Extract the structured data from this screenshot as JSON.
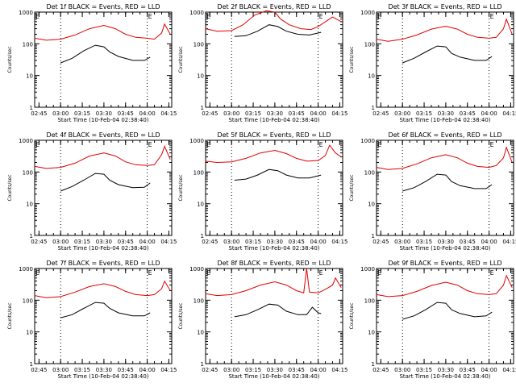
{
  "chart_data": {
    "type": "line",
    "y_scale": "log",
    "ylim": [
      1,
      1000
    ],
    "yticks": [
      "1",
      "10",
      "100",
      "1000"
    ],
    "xticks": [
      "02:45",
      "03:00",
      "03:15",
      "03:30",
      "03:45",
      "04:00",
      "04:15"
    ],
    "xtick_minutes": [
      165,
      180,
      195,
      210,
      225,
      240,
      255
    ],
    "xlim_minutes": [
      162,
      257
    ],
    "ylabel": "Counts/sec",
    "xlabel": "Start Time (10-Feb-04 02:38:40)",
    "marker_letter": "E",
    "vertical_markers_minutes": [
      180,
      240
    ],
    "panels": [
      {
        "title": "Det 1f BLACK = Events, RED = LLD",
        "lld": [
          [
            162,
            150
          ],
          [
            170,
            130
          ],
          [
            180,
            140
          ],
          [
            190,
            190
          ],
          [
            200,
            300
          ],
          [
            210,
            380
          ],
          [
            218,
            300
          ],
          [
            225,
            200
          ],
          [
            232,
            160
          ],
          [
            240,
            150
          ],
          [
            245,
            140
          ],
          [
            250,
            220
          ],
          [
            252,
            420
          ],
          [
            256,
            200
          ]
        ],
        "events": [
          [
            180,
            25
          ],
          [
            188,
            35
          ],
          [
            196,
            60
          ],
          [
            204,
            90
          ],
          [
            210,
            80
          ],
          [
            214,
            55
          ],
          [
            220,
            40
          ],
          [
            230,
            30
          ],
          [
            238,
            30
          ],
          [
            242,
            38
          ]
        ]
      },
      {
        "title": "Det 2f BLACK = Events, RED = LLD",
        "lld": [
          [
            162,
            300
          ],
          [
            170,
            250
          ],
          [
            180,
            260
          ],
          [
            188,
            400
          ],
          [
            196,
            800
          ],
          [
            204,
            1100
          ],
          [
            210,
            1000
          ],
          [
            214,
            600
          ],
          [
            220,
            400
          ],
          [
            228,
            300
          ],
          [
            235,
            280
          ],
          [
            240,
            350
          ],
          [
            250,
            700
          ],
          [
            256,
            500
          ]
        ],
        "events": [
          [
            182,
            170
          ],
          [
            190,
            180
          ],
          [
            198,
            250
          ],
          [
            206,
            400
          ],
          [
            212,
            350
          ],
          [
            218,
            250
          ],
          [
            226,
            200
          ],
          [
            234,
            190
          ],
          [
            242,
            230
          ]
        ]
      },
      {
        "title": "Det 3f BLACK = Events, RED = LLD",
        "lld": [
          [
            162,
            140
          ],
          [
            170,
            120
          ],
          [
            180,
            140
          ],
          [
            190,
            190
          ],
          [
            200,
            290
          ],
          [
            210,
            360
          ],
          [
            218,
            290
          ],
          [
            225,
            200
          ],
          [
            232,
            160
          ],
          [
            240,
            150
          ],
          [
            245,
            160
          ],
          [
            250,
            300
          ],
          [
            252,
            600
          ],
          [
            256,
            200
          ]
        ],
        "events": [
          [
            180,
            25
          ],
          [
            188,
            35
          ],
          [
            196,
            55
          ],
          [
            204,
            85
          ],
          [
            210,
            80
          ],
          [
            214,
            50
          ],
          [
            220,
            38
          ],
          [
            230,
            30
          ],
          [
            238,
            30
          ],
          [
            242,
            40
          ]
        ]
      },
      {
        "title": "Det 4f BLACK = Events, RED = LLD",
        "lld": [
          [
            162,
            150
          ],
          [
            170,
            130
          ],
          [
            180,
            140
          ],
          [
            190,
            190
          ],
          [
            200,
            320
          ],
          [
            210,
            400
          ],
          [
            218,
            320
          ],
          [
            225,
            210
          ],
          [
            232,
            170
          ],
          [
            240,
            160
          ],
          [
            245,
            170
          ],
          [
            250,
            350
          ],
          [
            252,
            650
          ],
          [
            256,
            250
          ]
        ],
        "events": [
          [
            180,
            25
          ],
          [
            188,
            35
          ],
          [
            196,
            55
          ],
          [
            204,
            90
          ],
          [
            210,
            85
          ],
          [
            214,
            55
          ],
          [
            220,
            40
          ],
          [
            230,
            32
          ],
          [
            238,
            33
          ],
          [
            242,
            45
          ]
        ]
      },
      {
        "title": "Det 5f BLACK = Events, RED = LLD",
        "lld": [
          [
            162,
            220
          ],
          [
            170,
            200
          ],
          [
            180,
            210
          ],
          [
            190,
            270
          ],
          [
            200,
            400
          ],
          [
            210,
            480
          ],
          [
            218,
            380
          ],
          [
            225,
            270
          ],
          [
            232,
            220
          ],
          [
            240,
            230
          ],
          [
            245,
            330
          ],
          [
            248,
            700
          ],
          [
            252,
            400
          ],
          [
            256,
            300
          ]
        ],
        "events": [
          [
            182,
            55
          ],
          [
            190,
            60
          ],
          [
            198,
            80
          ],
          [
            206,
            120
          ],
          [
            212,
            110
          ],
          [
            218,
            80
          ],
          [
            226,
            65
          ],
          [
            234,
            65
          ],
          [
            242,
            80
          ]
        ]
      },
      {
        "title": "Det 6f BLACK = Events, RED = LLD",
        "lld": [
          [
            162,
            140
          ],
          [
            170,
            120
          ],
          [
            180,
            130
          ],
          [
            190,
            180
          ],
          [
            200,
            280
          ],
          [
            210,
            350
          ],
          [
            218,
            280
          ],
          [
            225,
            190
          ],
          [
            232,
            150
          ],
          [
            240,
            140
          ],
          [
            245,
            160
          ],
          [
            250,
            280
          ],
          [
            252,
            600
          ],
          [
            256,
            200
          ]
        ],
        "events": [
          [
            180,
            25
          ],
          [
            188,
            32
          ],
          [
            196,
            50
          ],
          [
            204,
            85
          ],
          [
            210,
            80
          ],
          [
            214,
            50
          ],
          [
            220,
            37
          ],
          [
            230,
            30
          ],
          [
            238,
            30
          ],
          [
            242,
            40
          ]
        ]
      },
      {
        "title": "Det 7f BLACK = Events, RED = LLD",
        "lld": [
          [
            162,
            140
          ],
          [
            170,
            120
          ],
          [
            180,
            130
          ],
          [
            190,
            180
          ],
          [
            200,
            270
          ],
          [
            210,
            330
          ],
          [
            218,
            270
          ],
          [
            225,
            190
          ],
          [
            232,
            150
          ],
          [
            240,
            140
          ],
          [
            245,
            150
          ],
          [
            250,
            230
          ],
          [
            252,
            400
          ],
          [
            256,
            200
          ]
        ],
        "events": [
          [
            180,
            28
          ],
          [
            188,
            35
          ],
          [
            196,
            55
          ],
          [
            204,
            85
          ],
          [
            210,
            80
          ],
          [
            214,
            55
          ],
          [
            220,
            40
          ],
          [
            230,
            32
          ],
          [
            238,
            32
          ],
          [
            242,
            40
          ]
        ]
      },
      {
        "title": "Det 8f BLACK = Events, RED = LLD",
        "lld": [
          [
            162,
            160
          ],
          [
            170,
            140
          ],
          [
            180,
            150
          ],
          [
            190,
            200
          ],
          [
            200,
            300
          ],
          [
            210,
            380
          ],
          [
            218,
            300
          ],
          [
            225,
            200
          ],
          [
            230,
            170
          ],
          [
            232,
            1000
          ],
          [
            234,
            180
          ],
          [
            240,
            170
          ],
          [
            245,
            220
          ],
          [
            250,
            300
          ],
          [
            252,
            500
          ],
          [
            256,
            250
          ]
        ],
        "events": [
          [
            182,
            30
          ],
          [
            190,
            35
          ],
          [
            198,
            50
          ],
          [
            206,
            75
          ],
          [
            212,
            70
          ],
          [
            218,
            45
          ],
          [
            226,
            35
          ],
          [
            232,
            35
          ],
          [
            236,
            60
          ],
          [
            240,
            40
          ],
          [
            242,
            38
          ]
        ]
      },
      {
        "title": "Det 9f BLACK = Events, RED = LLD",
        "lld": [
          [
            162,
            150
          ],
          [
            170,
            130
          ],
          [
            180,
            140
          ],
          [
            190,
            190
          ],
          [
            200,
            290
          ],
          [
            210,
            370
          ],
          [
            218,
            300
          ],
          [
            225,
            200
          ],
          [
            232,
            160
          ],
          [
            240,
            150
          ],
          [
            245,
            160
          ],
          [
            250,
            300
          ],
          [
            252,
            600
          ],
          [
            256,
            250
          ]
        ],
        "events": [
          [
            180,
            25
          ],
          [
            188,
            32
          ],
          [
            196,
            50
          ],
          [
            204,
            85
          ],
          [
            210,
            80
          ],
          [
            214,
            50
          ],
          [
            220,
            38
          ],
          [
            230,
            30
          ],
          [
            238,
            32
          ],
          [
            242,
            42
          ]
        ]
      }
    ]
  }
}
